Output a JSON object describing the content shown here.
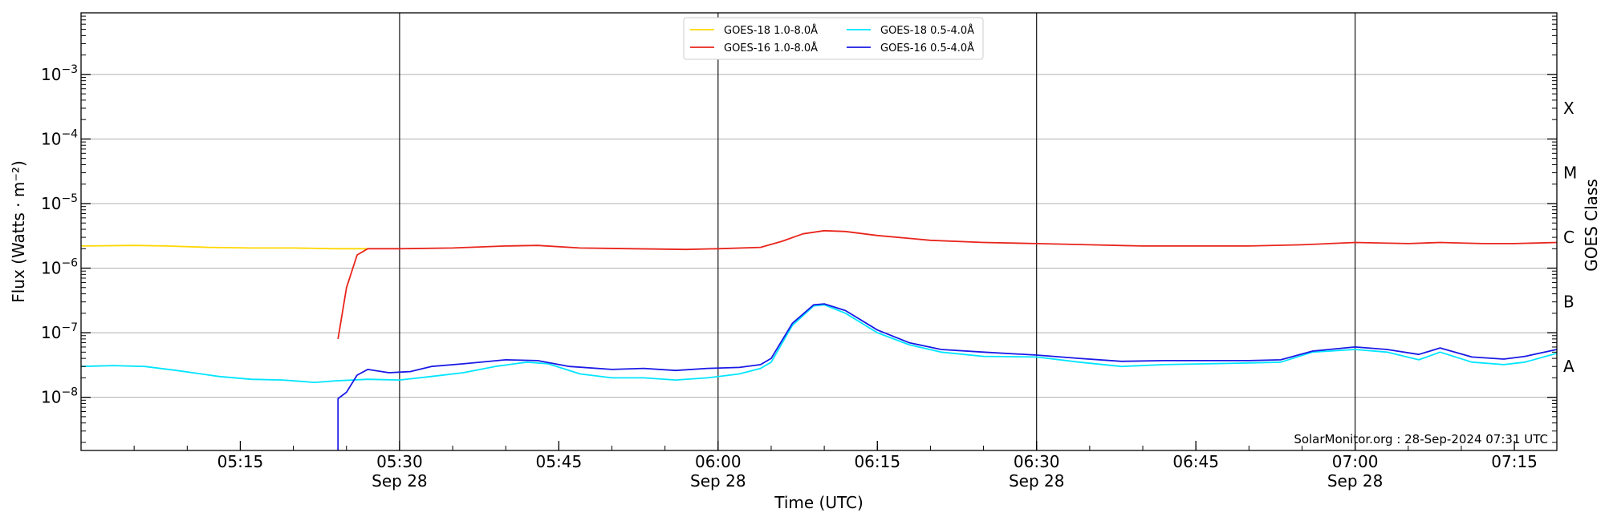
{
  "chart_data": {
    "type": "line",
    "xlabel": "Time (UTC)",
    "ylabel": "Flux (Watts · m⁻²)",
    "y2label": "GOES Class",
    "yscale": "log",
    "ylim": [
      1.5e-09,
      0.009
    ],
    "xlim": [
      "05:00",
      "07:19"
    ],
    "grid": "horizontal",
    "legend_position": "top-center",
    "credit": "SolarMonitor.org : 28-Sep-2024 07:31 UTC",
    "x_ticks": [
      {
        "t": "05:15",
        "label": "05:15",
        "date": ""
      },
      {
        "t": "05:30",
        "label": "05:30",
        "date": "Sep 28"
      },
      {
        "t": "05:45",
        "label": "05:45",
        "date": ""
      },
      {
        "t": "06:00",
        "label": "06:00",
        "date": "Sep 28"
      },
      {
        "t": "06:15",
        "label": "06:15",
        "date": ""
      },
      {
        "t": "06:30",
        "label": "06:30",
        "date": "Sep 28"
      },
      {
        "t": "06:45",
        "label": "06:45",
        "date": ""
      },
      {
        "t": "07:00",
        "label": "07:00",
        "date": "Sep 28"
      },
      {
        "t": "07:15",
        "label": "07:15",
        "date": ""
      }
    ],
    "day_lines": [
      "05:30",
      "06:00",
      "06:30",
      "07:00"
    ],
    "y_ticks": [
      {
        "v": 1e-08,
        "label": "10",
        "exp": "−8"
      },
      {
        "v": 1e-07,
        "label": "10",
        "exp": "−7"
      },
      {
        "v": 1e-06,
        "label": "10",
        "exp": "−6"
      },
      {
        "v": 1e-05,
        "label": "10",
        "exp": "−5"
      },
      {
        "v": 0.0001,
        "label": "10",
        "exp": "−4"
      },
      {
        "v": 0.001,
        "label": "10",
        "exp": "−3"
      }
    ],
    "goes_classes": [
      {
        "label": "A",
        "v": 3e-08
      },
      {
        "label": "B",
        "v": 3e-07
      },
      {
        "label": "C",
        "v": 3e-06
      },
      {
        "label": "M",
        "v": 3e-05
      },
      {
        "label": "X",
        "v": 0.0003
      }
    ],
    "series": [
      {
        "name": "GOES-18 1.0-8.0Å",
        "color": "#ffd700",
        "points": [
          [
            "05:00",
            2.2e-06
          ],
          [
            "05:05",
            2.25e-06
          ],
          [
            "05:08",
            2.2e-06
          ],
          [
            "05:12",
            2.1e-06
          ],
          [
            "05:16",
            2.05e-06
          ],
          [
            "05:20",
            2.05e-06
          ],
          [
            "05:24",
            2e-06
          ],
          [
            "05:27",
            2e-06
          ]
        ]
      },
      {
        "name": "GOES-16 1.0-8.0Å",
        "color": "#e8251c",
        "points": [
          [
            "05:24.2",
            8e-08
          ],
          [
            "05:25",
            5e-07
          ],
          [
            "05:26",
            1.6e-06
          ],
          [
            "05:27",
            2e-06
          ],
          [
            "05:30",
            2e-06
          ],
          [
            "05:35",
            2.05e-06
          ],
          [
            "05:40",
            2.2e-06
          ],
          [
            "05:43",
            2.25e-06
          ],
          [
            "05:47",
            2.05e-06
          ],
          [
            "05:52",
            2e-06
          ],
          [
            "05:57",
            1.95e-06
          ],
          [
            "06:00",
            2e-06
          ],
          [
            "06:04",
            2.1e-06
          ],
          [
            "06:06",
            2.6e-06
          ],
          [
            "06:08",
            3.4e-06
          ],
          [
            "06:10",
            3.8e-06
          ],
          [
            "06:12",
            3.7e-06
          ],
          [
            "06:15",
            3.2e-06
          ],
          [
            "06:20",
            2.7e-06
          ],
          [
            "06:25",
            2.5e-06
          ],
          [
            "06:30",
            2.4e-06
          ],
          [
            "06:35",
            2.3e-06
          ],
          [
            "06:40",
            2.2e-06
          ],
          [
            "06:45",
            2.2e-06
          ],
          [
            "06:50",
            2.2e-06
          ],
          [
            "06:55",
            2.3e-06
          ],
          [
            "07:00",
            2.5e-06
          ],
          [
            "07:05",
            2.4e-06
          ],
          [
            "07:08",
            2.5e-06
          ],
          [
            "07:12",
            2.4e-06
          ],
          [
            "07:15",
            2.4e-06
          ],
          [
            "07:19",
            2.5e-06
          ]
        ]
      },
      {
        "name": "GOES-18 0.5-4.0Å",
        "color": "#00e5ff",
        "points": [
          [
            "05:00",
            3e-08
          ],
          [
            "05:03",
            3.1e-08
          ],
          [
            "05:06",
            3e-08
          ],
          [
            "05:09",
            2.6e-08
          ],
          [
            "05:13",
            2.1e-08
          ],
          [
            "05:16",
            1.9e-08
          ],
          [
            "05:19",
            1.85e-08
          ],
          [
            "05:22",
            1.7e-08
          ],
          [
            "05:24",
            1.8e-08
          ],
          [
            "05:27",
            1.9e-08
          ],
          [
            "05:30",
            1.85e-08
          ],
          [
            "05:33",
            2.1e-08
          ],
          [
            "05:36",
            2.4e-08
          ],
          [
            "05:39",
            3e-08
          ],
          [
            "05:42",
            3.5e-08
          ],
          [
            "05:44",
            3.3e-08
          ],
          [
            "05:47",
            2.3e-08
          ],
          [
            "05:50",
            2e-08
          ],
          [
            "05:53",
            2e-08
          ],
          [
            "05:56",
            1.85e-08
          ],
          [
            "05:59",
            2e-08
          ],
          [
            "06:02",
            2.3e-08
          ],
          [
            "06:04",
            2.8e-08
          ],
          [
            "06:05",
            3.5e-08
          ],
          [
            "06:07",
            1.3e-07
          ],
          [
            "06:09",
            2.6e-07
          ],
          [
            "06:10",
            2.7e-07
          ],
          [
            "06:12",
            2e-07
          ],
          [
            "06:15",
            1e-07
          ],
          [
            "06:18",
            6.5e-08
          ],
          [
            "06:21",
            5e-08
          ],
          [
            "06:25",
            4.3e-08
          ],
          [
            "06:30",
            4.2e-08
          ],
          [
            "06:34",
            3.5e-08
          ],
          [
            "06:38",
            3e-08
          ],
          [
            "06:42",
            3.2e-08
          ],
          [
            "06:46",
            3.3e-08
          ],
          [
            "06:50",
            3.4e-08
          ],
          [
            "06:53",
            3.5e-08
          ],
          [
            "06:56",
            5e-08
          ],
          [
            "07:00",
            5.5e-08
          ],
          [
            "07:03",
            5e-08
          ],
          [
            "07:06",
            3.8e-08
          ],
          [
            "07:08",
            5e-08
          ],
          [
            "07:11",
            3.5e-08
          ],
          [
            "07:14",
            3.2e-08
          ],
          [
            "07:16",
            3.5e-08
          ],
          [
            "07:19",
            4.8e-08
          ]
        ]
      },
      {
        "name": "GOES-16 0.5-4.0Å",
        "color": "#1a1ae6",
        "points": [
          [
            "05:24.2",
            1.5e-09
          ],
          [
            "05:24.2",
            9.5e-09
          ],
          [
            "05:25",
            1.2e-08
          ],
          [
            "05:26",
            2.2e-08
          ],
          [
            "05:27",
            2.7e-08
          ],
          [
            "05:29",
            2.4e-08
          ],
          [
            "05:31",
            2.5e-08
          ],
          [
            "05:33",
            3e-08
          ],
          [
            "05:36",
            3.3e-08
          ],
          [
            "05:40",
            3.8e-08
          ],
          [
            "05:43",
            3.7e-08
          ],
          [
            "05:46",
            3e-08
          ],
          [
            "05:50",
            2.7e-08
          ],
          [
            "05:53",
            2.8e-08
          ],
          [
            "05:56",
            2.6e-08
          ],
          [
            "05:59",
            2.8e-08
          ],
          [
            "06:02",
            2.9e-08
          ],
          [
            "06:04",
            3.2e-08
          ],
          [
            "06:05",
            4e-08
          ],
          [
            "06:07",
            1.4e-07
          ],
          [
            "06:09",
            2.7e-07
          ],
          [
            "06:10",
            2.8e-07
          ],
          [
            "06:12",
            2.2e-07
          ],
          [
            "06:15",
            1.1e-07
          ],
          [
            "06:18",
            7e-08
          ],
          [
            "06:21",
            5.5e-08
          ],
          [
            "06:25",
            5e-08
          ],
          [
            "06:30",
            4.5e-08
          ],
          [
            "06:34",
            4e-08
          ],
          [
            "06:38",
            3.6e-08
          ],
          [
            "06:42",
            3.7e-08
          ],
          [
            "06:46",
            3.7e-08
          ],
          [
            "06:50",
            3.7e-08
          ],
          [
            "06:53",
            3.8e-08
          ],
          [
            "06:56",
            5.2e-08
          ],
          [
            "07:00",
            6e-08
          ],
          [
            "07:03",
            5.5e-08
          ],
          [
            "07:06",
            4.6e-08
          ],
          [
            "07:08",
            5.8e-08
          ],
          [
            "07:11",
            4.2e-08
          ],
          [
            "07:14",
            3.9e-08
          ],
          [
            "07:16",
            4.3e-08
          ],
          [
            "07:19",
            5.5e-08
          ]
        ]
      }
    ]
  }
}
